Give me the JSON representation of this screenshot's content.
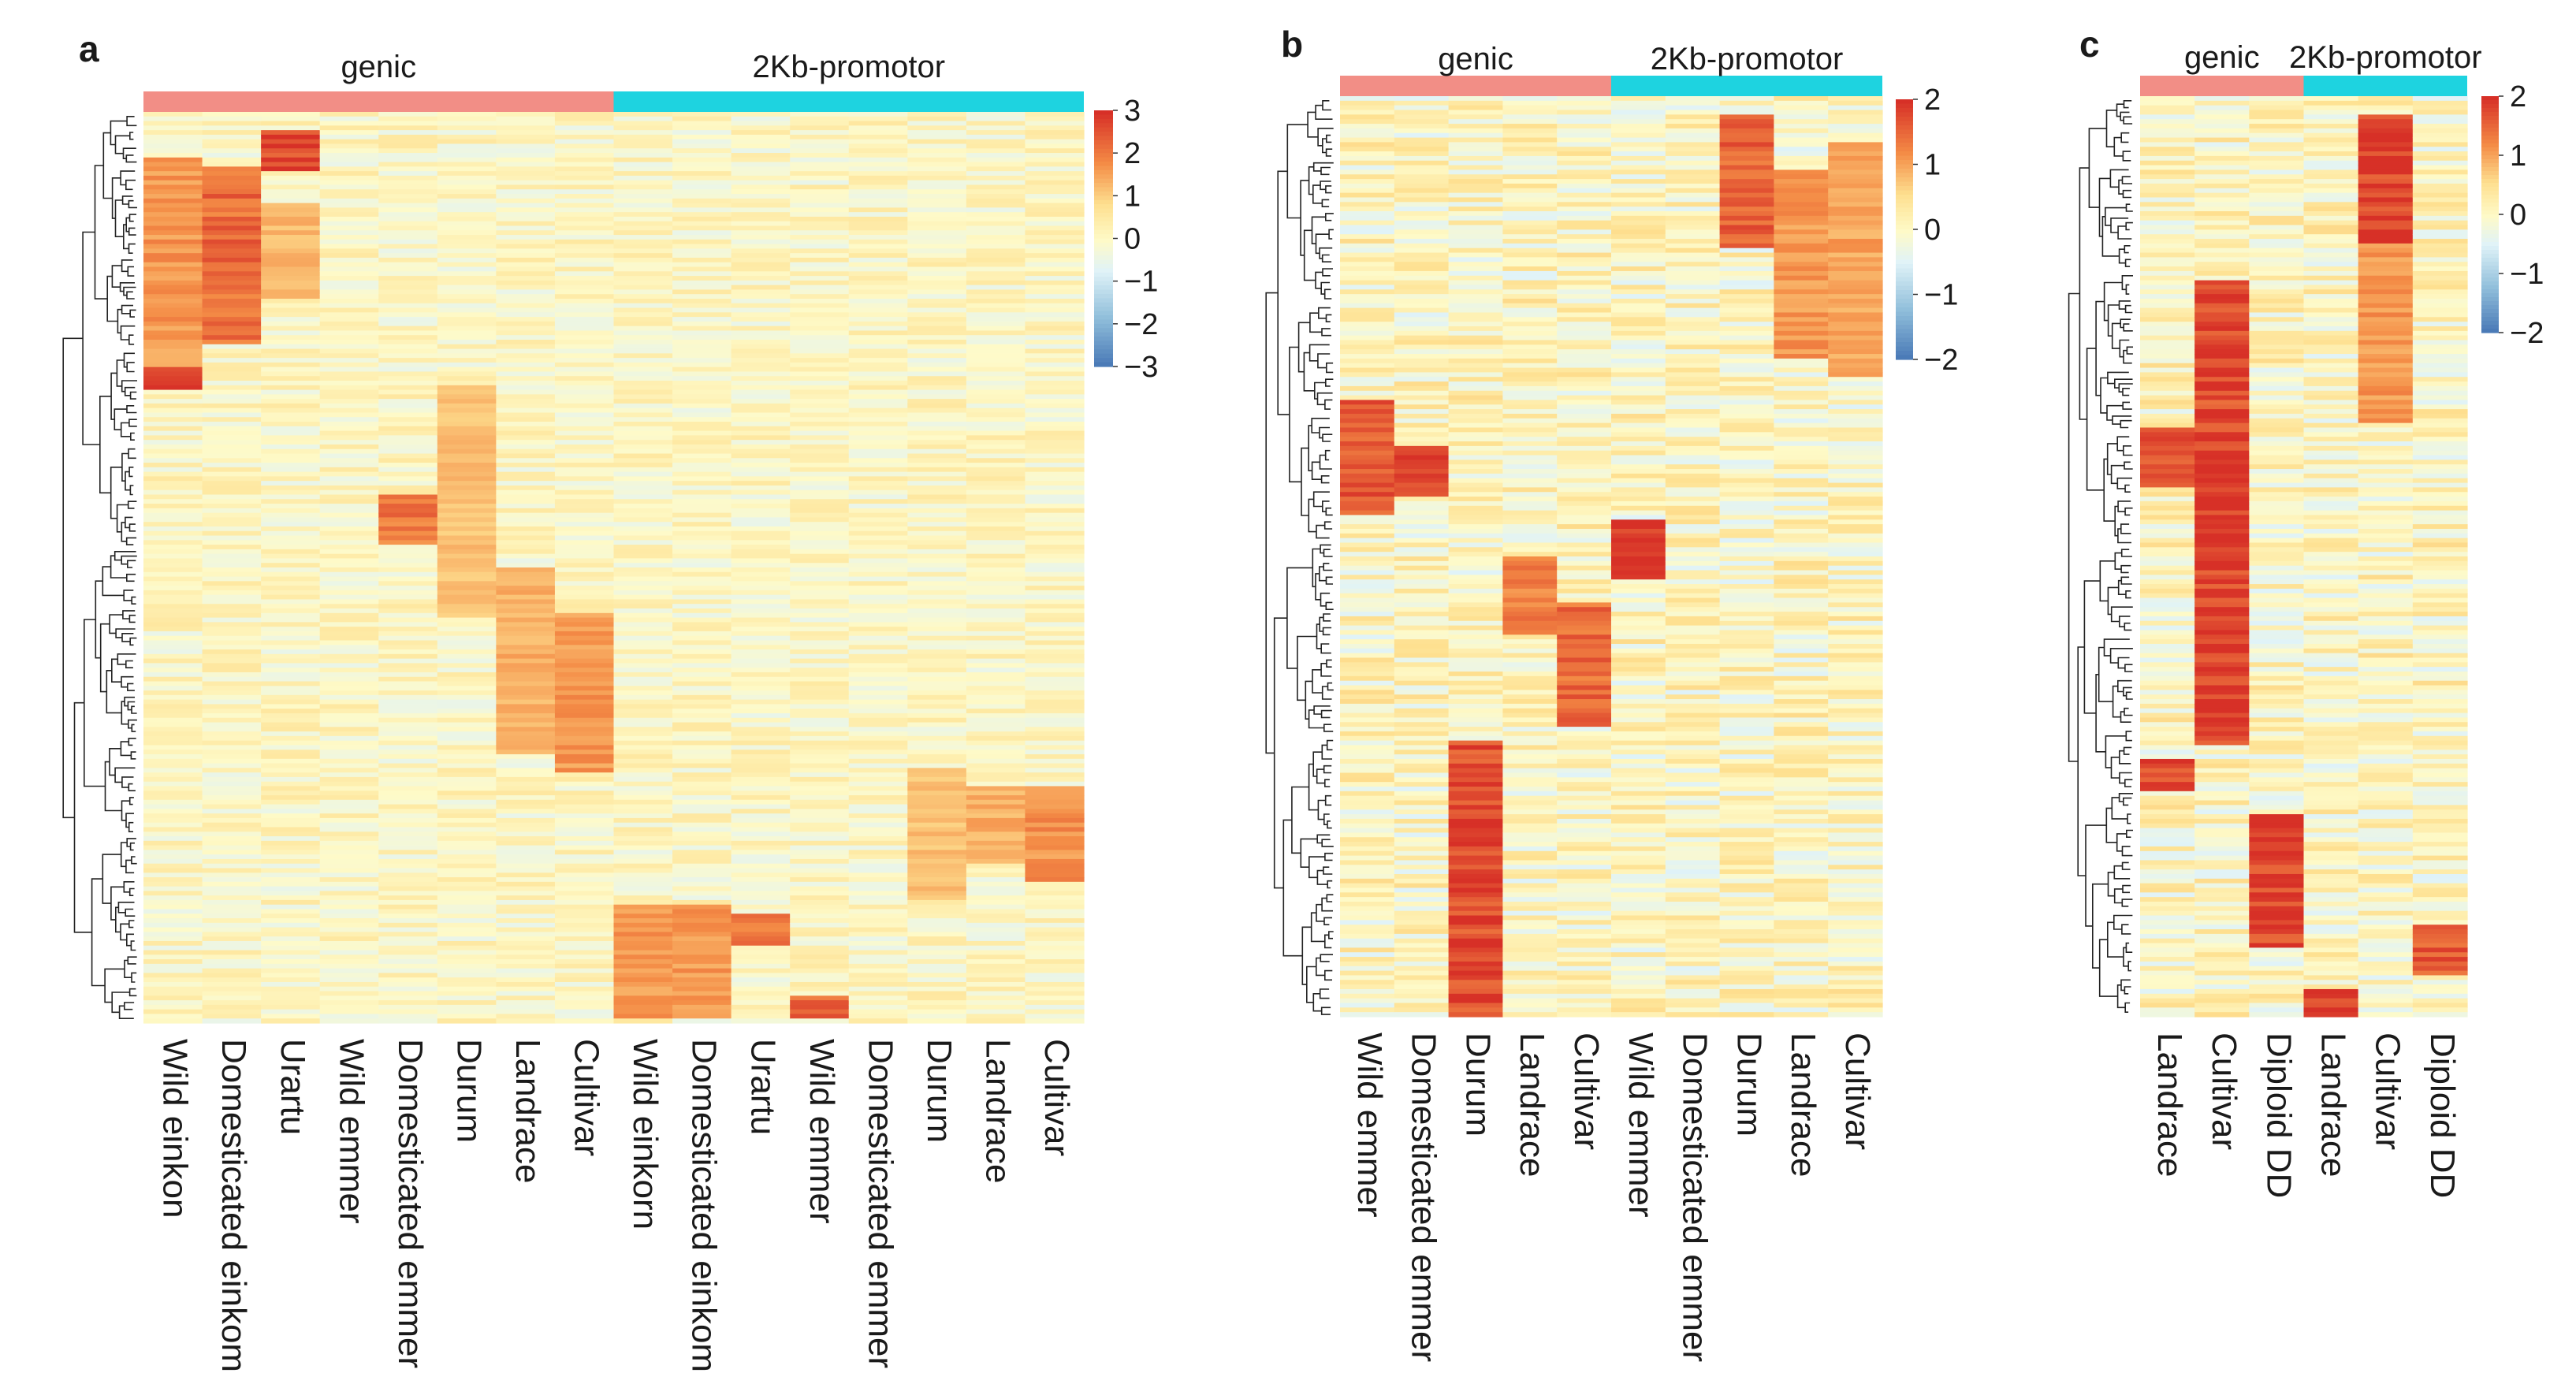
{
  "figure": {
    "row_count": 200,
    "chart_data": [
      {
        "type": "heatmap",
        "panel": "a",
        "groups": [
          {
            "label": "genic",
            "color": "#f28e86",
            "span": 8
          },
          {
            "label": "2Kb-promotor",
            "color": "#1ed3e0",
            "span": 8
          }
        ],
        "columns": [
          "Wild einkon",
          "Domesticated einkom",
          "Urartu",
          "Wild emmer",
          "Domesticated emmer",
          "Durum",
          "Landrace",
          "Cultivar",
          "Wild einkorn",
          "Domesticated einkom",
          "Urartu",
          "Wild emmer",
          "Domesticated emmer",
          "Durum",
          "Landrace",
          "Cultivar"
        ],
        "scale": {
          "min": -3,
          "max": 3,
          "ticks": [
            3,
            2,
            1,
            0,
            -1,
            -2,
            -3
          ]
        },
        "hotspots": [
          {
            "col": 0,
            "from": 0.05,
            "to": 0.3,
            "value": 1.8
          },
          {
            "col": 0,
            "from": 0.28,
            "to": 0.3,
            "value": 3.0
          },
          {
            "col": 1,
            "from": 0.06,
            "to": 0.25,
            "value": 2.4
          },
          {
            "col": 2,
            "from": 0.02,
            "to": 0.06,
            "value": 3.0
          },
          {
            "col": 2,
            "from": 0.1,
            "to": 0.2,
            "value": 1.4
          },
          {
            "col": 5,
            "from": 0.3,
            "to": 0.55,
            "value": 1.3
          },
          {
            "col": 4,
            "from": 0.42,
            "to": 0.47,
            "value": 2.2
          },
          {
            "col": 6,
            "from": 0.5,
            "to": 0.7,
            "value": 1.5
          },
          {
            "col": 7,
            "from": 0.55,
            "to": 0.72,
            "value": 1.8
          },
          {
            "col": 8,
            "from": 0.87,
            "to": 0.99,
            "value": 1.8
          },
          {
            "col": 9,
            "from": 0.87,
            "to": 0.99,
            "value": 1.8
          },
          {
            "col": 10,
            "from": 0.88,
            "to": 0.91,
            "value": 2.2
          },
          {
            "col": 11,
            "from": 0.97,
            "to": 0.99,
            "value": 2.6
          },
          {
            "col": 13,
            "from": 0.72,
            "to": 0.86,
            "value": 1.3
          },
          {
            "col": 14,
            "from": 0.74,
            "to": 0.82,
            "value": 1.5
          },
          {
            "col": 15,
            "from": 0.74,
            "to": 0.84,
            "value": 1.9
          }
        ]
      },
      {
        "type": "heatmap",
        "panel": "b",
        "groups": [
          {
            "label": "genic",
            "color": "#f28e86",
            "span": 5
          },
          {
            "label": "2Kb-promotor",
            "color": "#1ed3e0",
            "span": 5
          }
        ],
        "columns": [
          "Wild emmer",
          "Domesticated emmer",
          "Durum",
          "Landrace",
          "Cultivar",
          "Wild emmer",
          "Domesticated emmer",
          "Durum",
          "Landrace",
          "Cultivar"
        ],
        "scale": {
          "min": -2,
          "max": 2,
          "ticks": [
            2,
            1,
            0,
            -1,
            -2
          ]
        },
        "hotspots": [
          {
            "col": 0,
            "from": 0.33,
            "to": 0.45,
            "value": 1.8
          },
          {
            "col": 1,
            "from": 0.38,
            "to": 0.43,
            "value": 2.0
          },
          {
            "col": 2,
            "from": 0.7,
            "to": 1.0,
            "value": 1.9
          },
          {
            "col": 3,
            "from": 0.5,
            "to": 0.58,
            "value": 1.4
          },
          {
            "col": 4,
            "from": 0.55,
            "to": 0.68,
            "value": 1.6
          },
          {
            "col": 5,
            "from": 0.46,
            "to": 0.52,
            "value": 2.0
          },
          {
            "col": 7,
            "from": 0.02,
            "to": 0.16,
            "value": 1.7
          },
          {
            "col": 8,
            "from": 0.08,
            "to": 0.28,
            "value": 1.2
          },
          {
            "col": 9,
            "from": 0.05,
            "to": 0.3,
            "value": 1.1
          }
        ]
      },
      {
        "type": "heatmap",
        "panel": "c",
        "groups": [
          {
            "label": "genic",
            "color": "#f28e86",
            "span": 3
          },
          {
            "label": "2Kb-promotor",
            "color": "#1ed3e0",
            "span": 3
          }
        ],
        "columns": [
          "Landrace",
          "Cultivar",
          "Diploid DD",
          "Landrace",
          "Cultivar",
          "Diploid DD"
        ],
        "scale": {
          "min": -2,
          "max": 2,
          "ticks": [
            2,
            1,
            0,
            -1,
            -2
          ]
        },
        "hotspots": [
          {
            "col": 0,
            "from": 0.36,
            "to": 0.42,
            "value": 1.9
          },
          {
            "col": 0,
            "from": 0.72,
            "to": 0.75,
            "value": 2.0
          },
          {
            "col": 1,
            "from": 0.2,
            "to": 0.7,
            "value": 1.9
          },
          {
            "col": 1,
            "from": 0.34,
            "to": 0.7,
            "value": 2.0
          },
          {
            "col": 2,
            "from": 0.78,
            "to": 0.92,
            "value": 2.0
          },
          {
            "col": 3,
            "from": 0.97,
            "to": 1.0,
            "value": 2.0
          },
          {
            "col": 4,
            "from": 0.02,
            "to": 0.16,
            "value": 2.0
          },
          {
            "col": 4,
            "from": 0.16,
            "to": 0.35,
            "value": 1.2
          },
          {
            "col": 5,
            "from": 0.9,
            "to": 0.95,
            "value": 1.8
          }
        ]
      }
    ]
  }
}
